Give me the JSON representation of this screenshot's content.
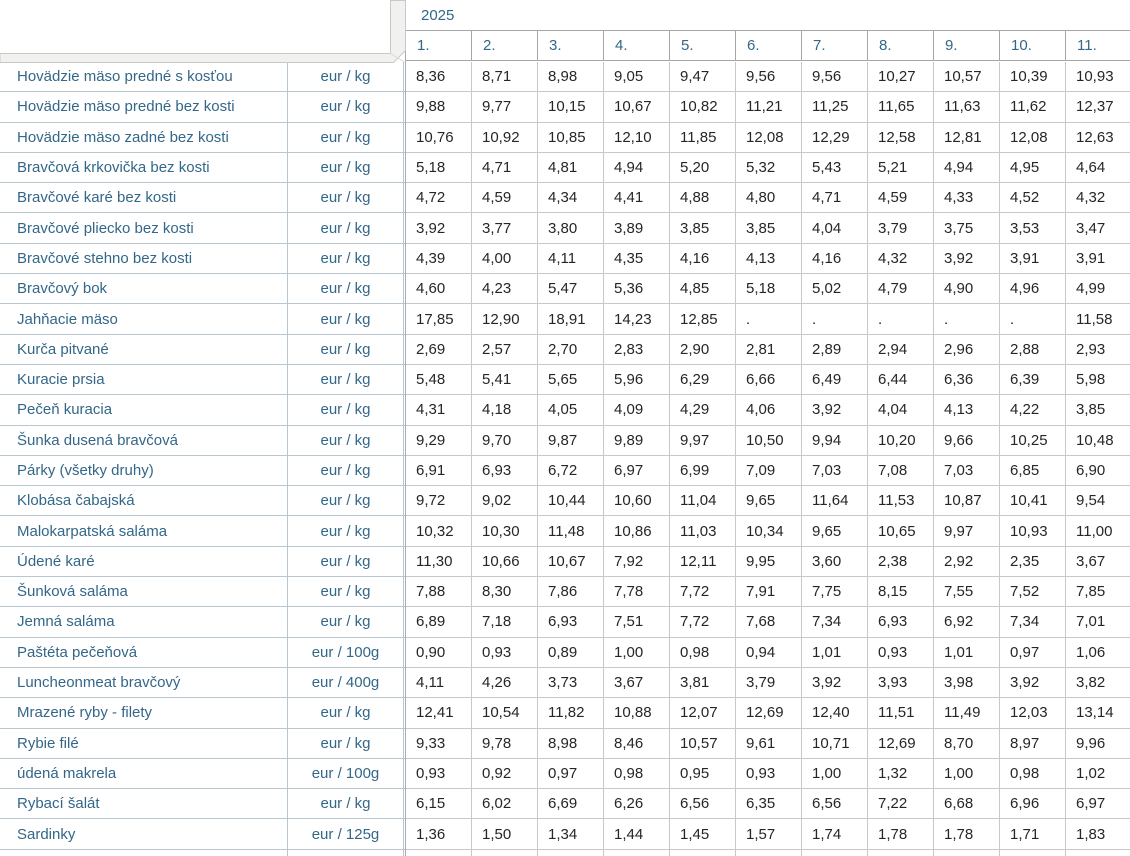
{
  "header": {
    "year": "2025",
    "months": [
      "1.",
      "2.",
      "3.",
      "4.",
      "5.",
      "6.",
      "7.",
      "8.",
      "9.",
      "10.",
      "11."
    ]
  },
  "rows": [
    {
      "name": "Hovädzie mäso predné s kosťou",
      "unit": "eur / kg",
      "values": [
        "8,36",
        "8,71",
        "8,98",
        "9,05",
        "9,47",
        "9,56",
        "9,56",
        "10,27",
        "10,57",
        "10,39",
        "10,93"
      ]
    },
    {
      "name": "Hovädzie mäso predné bez kosti",
      "unit": "eur / kg",
      "values": [
        "9,88",
        "9,77",
        "10,15",
        "10,67",
        "10,82",
        "11,21",
        "11,25",
        "11,65",
        "11,63",
        "11,62",
        "12,37"
      ]
    },
    {
      "name": "Hovädzie mäso zadné bez kosti",
      "unit": "eur / kg",
      "values": [
        "10,76",
        "10,92",
        "10,85",
        "12,10",
        "11,85",
        "12,08",
        "12,29",
        "12,58",
        "12,81",
        "12,08",
        "12,63"
      ]
    },
    {
      "name": "Bravčová krkovička bez kosti",
      "unit": "eur / kg",
      "values": [
        "5,18",
        "4,71",
        "4,81",
        "4,94",
        "5,20",
        "5,32",
        "5,43",
        "5,21",
        "4,94",
        "4,95",
        "4,64"
      ]
    },
    {
      "name": "Bravčové karé bez kosti",
      "unit": "eur / kg",
      "values": [
        "4,72",
        "4,59",
        "4,34",
        "4,41",
        "4,88",
        "4,80",
        "4,71",
        "4,59",
        "4,33",
        "4,52",
        "4,32"
      ]
    },
    {
      "name": "Bravčové pliecko bez kosti",
      "unit": "eur / kg",
      "values": [
        "3,92",
        "3,77",
        "3,80",
        "3,89",
        "3,85",
        "3,85",
        "4,04",
        "3,79",
        "3,75",
        "3,53",
        "3,47"
      ]
    },
    {
      "name": "Bravčové stehno bez kosti",
      "unit": "eur / kg",
      "values": [
        "4,39",
        "4,00",
        "4,11",
        "4,35",
        "4,16",
        "4,13",
        "4,16",
        "4,32",
        "3,92",
        "3,91",
        "3,91"
      ]
    },
    {
      "name": "Bravčový bok",
      "unit": "eur / kg",
      "values": [
        "4,60",
        "4,23",
        "5,47",
        "5,36",
        "4,85",
        "5,18",
        "5,02",
        "4,79",
        "4,90",
        "4,96",
        "4,99"
      ]
    },
    {
      "name": "Jahňacie mäso",
      "unit": "eur / kg",
      "values": [
        "17,85",
        "12,90",
        "18,91",
        "14,23",
        "12,85",
        ".",
        ".",
        ".",
        ".",
        ".",
        "11,58"
      ]
    },
    {
      "name": "Kurča pitvané",
      "unit": "eur / kg",
      "values": [
        "2,69",
        "2,57",
        "2,70",
        "2,83",
        "2,90",
        "2,81",
        "2,89",
        "2,94",
        "2,96",
        "2,88",
        "2,93"
      ]
    },
    {
      "name": "Kuracie prsia",
      "unit": "eur / kg",
      "values": [
        "5,48",
        "5,41",
        "5,65",
        "5,96",
        "6,29",
        "6,66",
        "6,49",
        "6,44",
        "6,36",
        "6,39",
        "5,98"
      ]
    },
    {
      "name": "Pečeň kuracia",
      "unit": "eur / kg",
      "values": [
        "4,31",
        "4,18",
        "4,05",
        "4,09",
        "4,29",
        "4,06",
        "3,92",
        "4,04",
        "4,13",
        "4,22",
        "3,85"
      ]
    },
    {
      "name": "Šunka dusená bravčová",
      "unit": "eur / kg",
      "values": [
        "9,29",
        "9,70",
        "9,87",
        "9,89",
        "9,97",
        "10,50",
        "9,94",
        "10,20",
        "9,66",
        "10,25",
        "10,48"
      ]
    },
    {
      "name": "Párky (všetky druhy)",
      "unit": "eur / kg",
      "values": [
        "6,91",
        "6,93",
        "6,72",
        "6,97",
        "6,99",
        "7,09",
        "7,03",
        "7,08",
        "7,03",
        "6,85",
        "6,90"
      ]
    },
    {
      "name": "Klobása čabajská",
      "unit": "eur / kg",
      "values": [
        "9,72",
        "9,02",
        "10,44",
        "10,60",
        "11,04",
        "9,65",
        "11,64",
        "11,53",
        "10,87",
        "10,41",
        "9,54"
      ]
    },
    {
      "name": "Malokarpatská saláma",
      "unit": "eur / kg",
      "values": [
        "10,32",
        "10,30",
        "11,48",
        "10,86",
        "11,03",
        "10,34",
        "9,65",
        "10,65",
        "9,97",
        "10,93",
        "11,00"
      ]
    },
    {
      "name": "Údené karé",
      "unit": "eur / kg",
      "values": [
        "11,30",
        "10,66",
        "10,67",
        "7,92",
        "12,11",
        "9,95",
        "3,60",
        "2,38",
        "2,92",
        "2,35",
        "3,67"
      ]
    },
    {
      "name": "Šunková saláma",
      "unit": "eur / kg",
      "values": [
        "7,88",
        "8,30",
        "7,86",
        "7,78",
        "7,72",
        "7,91",
        "7,75",
        "8,15",
        "7,55",
        "7,52",
        "7,85"
      ]
    },
    {
      "name": "Jemná saláma",
      "unit": "eur / kg",
      "values": [
        "6,89",
        "7,18",
        "6,93",
        "7,51",
        "7,72",
        "7,68",
        "7,34",
        "6,93",
        "6,92",
        "7,34",
        "7,01"
      ]
    },
    {
      "name": "Paštéta pečeňová",
      "unit": "eur / 100g",
      "values": [
        "0,90",
        "0,93",
        "0,89",
        "1,00",
        "0,98",
        "0,94",
        "1,01",
        "0,93",
        "1,01",
        "0,97",
        "1,06"
      ]
    },
    {
      "name": "Luncheonmeat bravčový",
      "unit": "eur / 400g",
      "values": [
        "4,11",
        "4,26",
        "3,73",
        "3,67",
        "3,81",
        "3,79",
        "3,92",
        "3,93",
        "3,98",
        "3,92",
        "3,82"
      ]
    },
    {
      "name": "Mrazené ryby - filety",
      "unit": "eur / kg",
      "values": [
        "12,41",
        "10,54",
        "11,82",
        "10,88",
        "12,07",
        "12,69",
        "12,40",
        "11,51",
        "11,49",
        "12,03",
        "13,14"
      ]
    },
    {
      "name": "Rybie filé",
      "unit": "eur / kg",
      "values": [
        "9,33",
        "9,78",
        "8,98",
        "8,46",
        "10,57",
        "9,61",
        "10,71",
        "12,69",
        "8,70",
        "8,97",
        "9,96"
      ]
    },
    {
      "name": "údená makrela",
      "unit": "eur / 100g",
      "values": [
        "0,93",
        "0,92",
        "0,97",
        "0,98",
        "0,95",
        "0,93",
        "1,00",
        "1,32",
        "1,00",
        "0,98",
        "1,02"
      ]
    },
    {
      "name": "Rybací šalát",
      "unit": "eur / kg",
      "values": [
        "6,15",
        "6,02",
        "6,69",
        "6,26",
        "6,56",
        "6,35",
        "6,56",
        "7,22",
        "6,68",
        "6,96",
        "6,97"
      ]
    },
    {
      "name": "Sardinky",
      "unit": "eur / 125g",
      "values": [
        "1,36",
        "1,50",
        "1,34",
        "1,44",
        "1,45",
        "1,57",
        "1,74",
        "1,78",
        "1,78",
        "1,71",
        "1,83"
      ]
    }
  ],
  "colors": {
    "accent_text": "#336789",
    "data_text": "#262626",
    "left_border": "#b8c6d0",
    "grid_border": "#c8c8c8",
    "header_border": "#a6a6a6",
    "splitter_fill": "#f1f1f0",
    "splitter_stroke": "#c9c9c8"
  }
}
